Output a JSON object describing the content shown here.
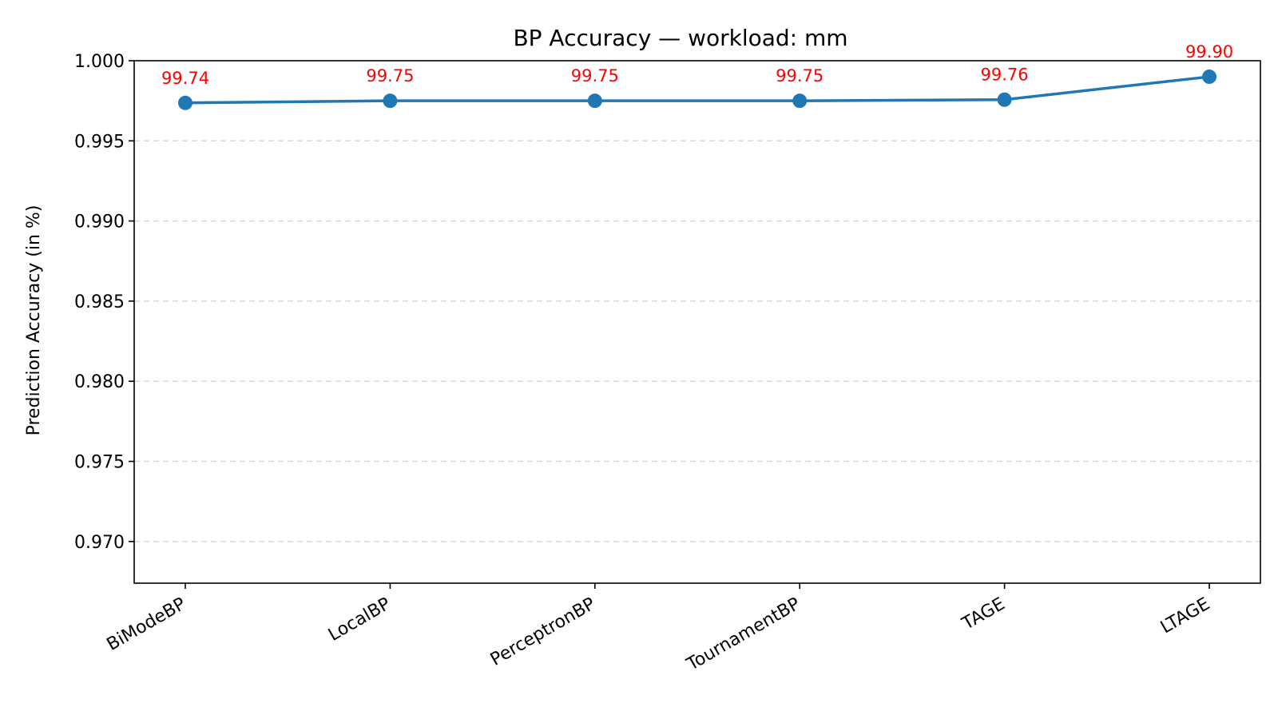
{
  "chart_data": {
    "type": "line",
    "title": "BP Accuracy — workload: mm",
    "xlabel": "",
    "ylabel": "Prediction Accuracy (in %)",
    "categories": [
      "BiModeBP",
      "LocalBP",
      "PerceptronBP",
      "TournamentBP",
      "TAGE",
      "LTAGE"
    ],
    "series": [
      {
        "values": [
          0.99737,
          0.9975,
          0.9975,
          0.9975,
          0.99757,
          0.999
        ],
        "labels": [
          "99.74",
          "99.75",
          "99.75",
          "99.75",
          "99.76",
          "99.90"
        ],
        "color": "#1f77b4",
        "label_color": "#ff0000"
      }
    ],
    "ylim": [
      0.9674,
      1.0
    ],
    "yticks": [
      0.97,
      0.975,
      0.98,
      0.985,
      0.99,
      0.995,
      1.0
    ],
    "ytick_labels": [
      "0.970",
      "0.975",
      "0.980",
      "0.985",
      "0.990",
      "0.995",
      "1.000"
    ],
    "grid": "y-dashed",
    "legend": "none"
  }
}
